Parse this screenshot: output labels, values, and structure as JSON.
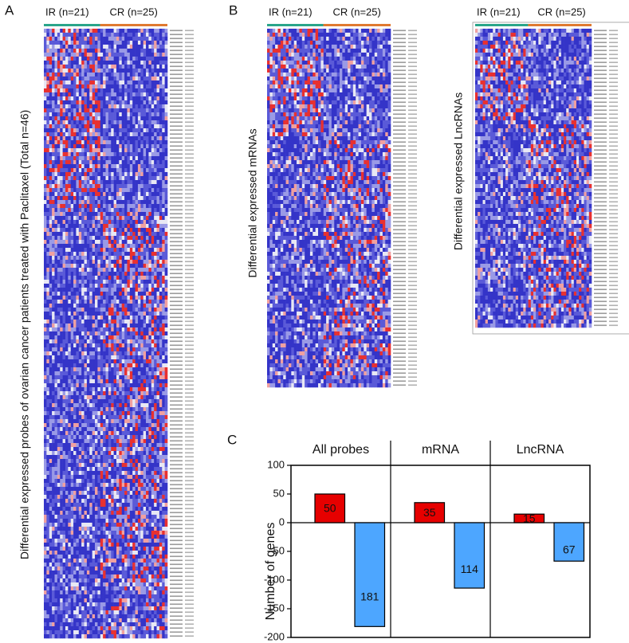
{
  "panels": {
    "a": {
      "letter": "A",
      "groups": [
        "IR (n=21)",
        "CR (n=25)"
      ],
      "ylabel": "Differential expressed probes of ovarian cancer patients treated with Paclitaxel (Total n=46)"
    },
    "b": {
      "letter": "B",
      "heatmaps": [
        {
          "groups": [
            "IR (n=21)",
            "CR (n=25)"
          ],
          "ylabel": "Differential expressed mRNAs"
        },
        {
          "groups": [
            "IR (n=21)",
            "CR (n=25)"
          ],
          "ylabel": "Differential expressed LncRNAs"
        }
      ]
    },
    "c": {
      "letter": "C"
    }
  },
  "chart_data": {
    "type": "bar",
    "categories": [
      "All probes",
      "mRNA",
      "LncRNA"
    ],
    "y_label": "Number of  genes",
    "series": [
      {
        "color": "#e60000",
        "values": [
          50,
          35,
          15
        ]
      },
      {
        "color": "#4da6ff",
        "values": [
          -181,
          -114,
          -67
        ],
        "value_labels": [
          "181",
          "114",
          "67"
        ]
      }
    ],
    "ylim": [
      -200,
      100
    ],
    "yticks": [
      -200,
      -150,
      -100,
      -50,
      0,
      50,
      100
    ]
  }
}
